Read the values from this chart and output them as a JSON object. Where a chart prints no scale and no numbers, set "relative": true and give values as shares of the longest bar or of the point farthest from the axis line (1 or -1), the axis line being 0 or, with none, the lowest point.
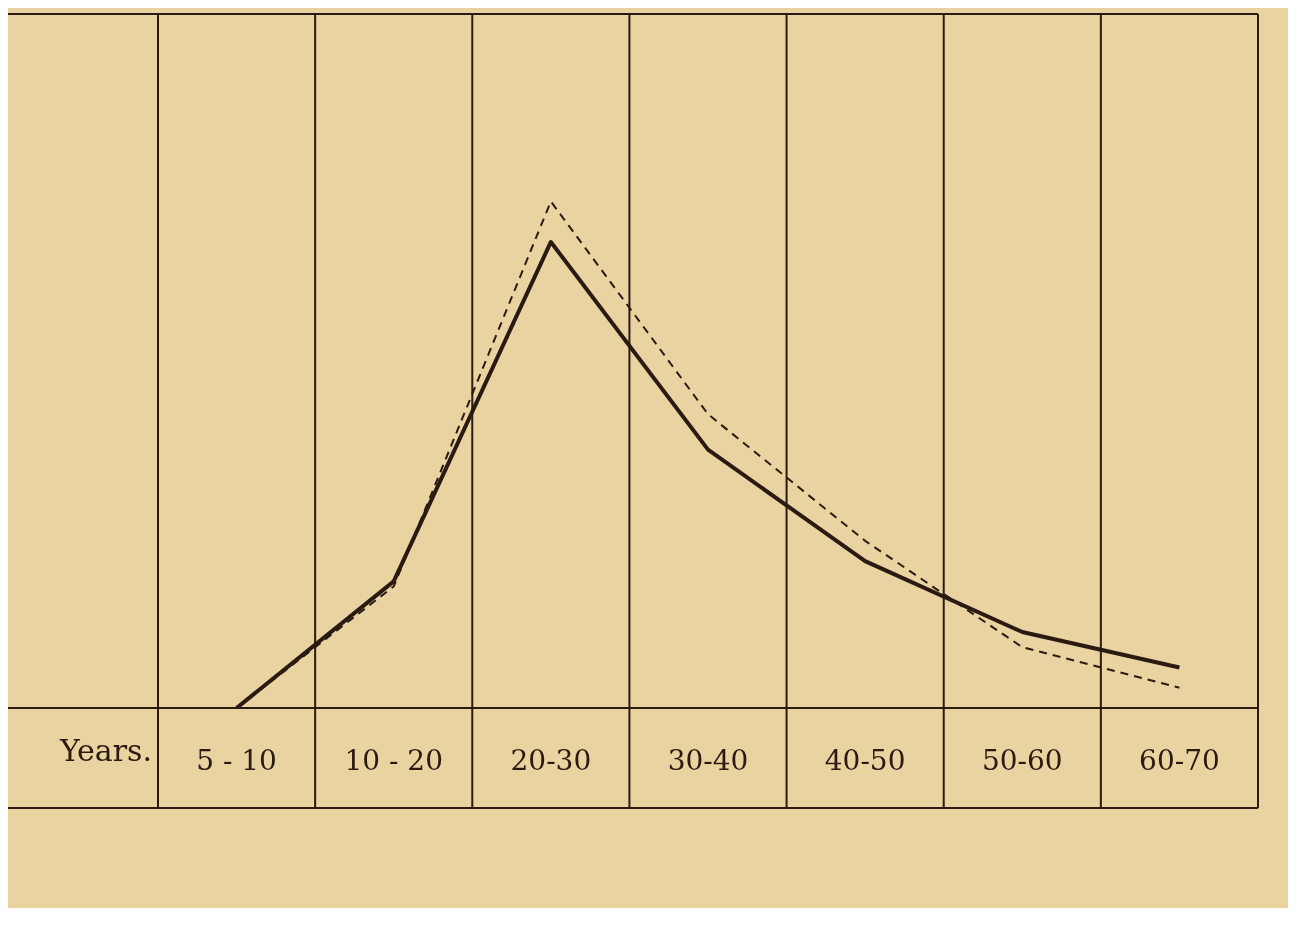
{
  "chart_data": {
    "type": "line",
    "xlabel": "Years.",
    "categories": [
      "5 - 10",
      "10 - 20",
      "20-30",
      "30-40",
      "40-50",
      "50-60",
      "60-70"
    ],
    "relative": true,
    "grid": "x",
    "marker": "none",
    "series": [
      {
        "color": "#2a1a12",
        "line_style": "solid",
        "values": [
          0,
          0.25,
          0.92,
          0.51,
          0.29,
          0.15,
          0.08
        ]
      },
      {
        "color": "#2a1a12",
        "line_style": "dashed",
        "values": [
          0,
          0.24,
          1,
          0.58,
          0.33,
          0.12,
          0.04
        ]
      }
    ]
  }
}
